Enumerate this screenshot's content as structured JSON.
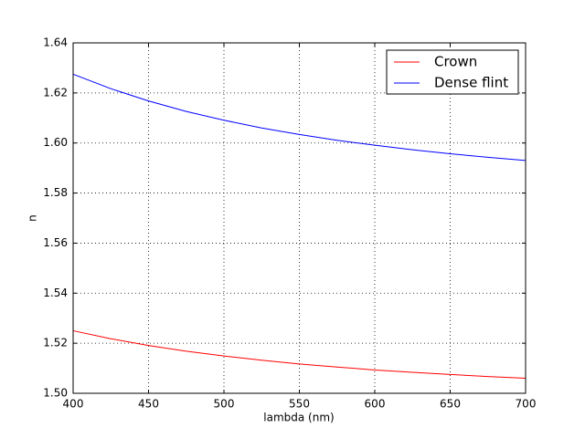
{
  "chart_data": {
    "type": "line",
    "x_label": "lambda (nm)",
    "y_label": "n",
    "x": [
      400,
      425,
      450,
      475,
      500,
      525,
      550,
      575,
      600,
      625,
      650,
      675,
      700
    ],
    "series": [
      {
        "name": "Crown",
        "color": "#ff0000",
        "values": [
          1.525,
          1.5218,
          1.5191,
          1.5168,
          1.5149,
          1.5132,
          1.5117,
          1.5105,
          1.5093,
          1.5084,
          1.5075,
          1.5067,
          1.506
        ]
      },
      {
        "name": "Dense flint",
        "color": "#0000ff",
        "values": [
          1.6275,
          1.6217,
          1.6168,
          1.6126,
          1.6091,
          1.606,
          1.6034,
          1.6011,
          1.5991,
          1.5973,
          1.5957,
          1.5943,
          1.593
        ]
      }
    ],
    "xlim": [
      400,
      700
    ],
    "xticks": [
      400,
      450,
      500,
      550,
      600,
      650,
      700
    ],
    "ylim": [
      1.5,
      1.64
    ],
    "yticks": [
      {
        "value": 1.5,
        "label": "1.50"
      },
      1.52,
      1.54,
      1.56,
      1.58,
      {
        "value": 1.6,
        "label": "1.60"
      },
      1.62,
      1.64
    ],
    "grid": true,
    "legend": "upper-right"
  }
}
